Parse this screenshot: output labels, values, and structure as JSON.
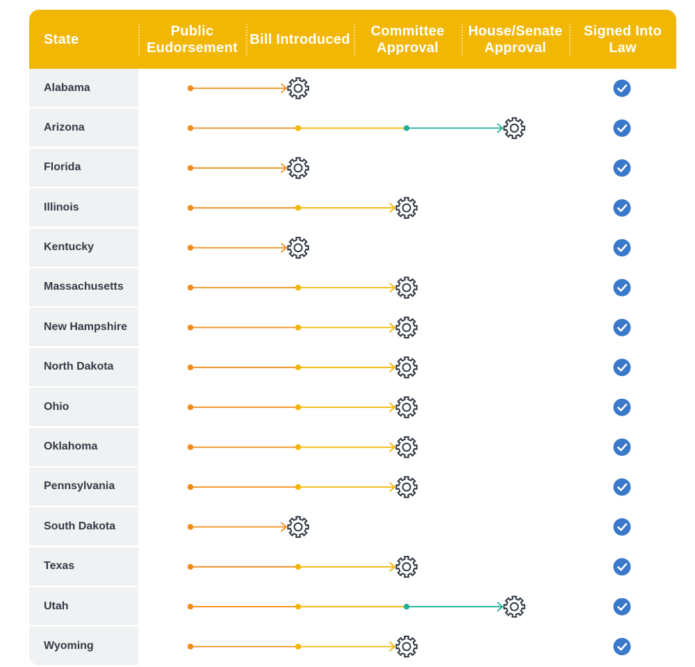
{
  "header": {
    "columns": [
      "State",
      "Public Eudorsement",
      "Bill Introduced",
      "Committee Approval",
      "House/Senate Approval",
      "Signed Into Law"
    ]
  },
  "stage_colors": [
    "#F28C1A",
    "#F2B705",
    "#1FAE99"
  ],
  "signed_icon": "check-circle-icon",
  "progress_icon": "gear-icon",
  "rows": [
    {
      "state": "Alabama",
      "stage": 1,
      "signed": true
    },
    {
      "state": "Arizona",
      "stage": 3,
      "signed": true
    },
    {
      "state": "Florida",
      "stage": 1,
      "signed": true
    },
    {
      "state": "Illinois",
      "stage": 2,
      "signed": true
    },
    {
      "state": "Kentucky",
      "stage": 1,
      "signed": true
    },
    {
      "state": "Massachusetts",
      "stage": 2,
      "signed": true
    },
    {
      "state": "New Hampshire",
      "stage": 2,
      "signed": true
    },
    {
      "state": "North Dakota",
      "stage": 2,
      "signed": true
    },
    {
      "state": "Ohio",
      "stage": 2,
      "signed": true
    },
    {
      "state": "Oklahoma",
      "stage": 2,
      "signed": true
    },
    {
      "state": "Pennsylvania",
      "stage": 2,
      "signed": true
    },
    {
      "state": "South Dakota",
      "stage": 1,
      "signed": true
    },
    {
      "state": "Texas",
      "stage": 2,
      "signed": true
    },
    {
      "state": "Utah",
      "stage": 3,
      "signed": true
    },
    {
      "state": "Wyoming",
      "stage": 2,
      "signed": true
    }
  ]
}
